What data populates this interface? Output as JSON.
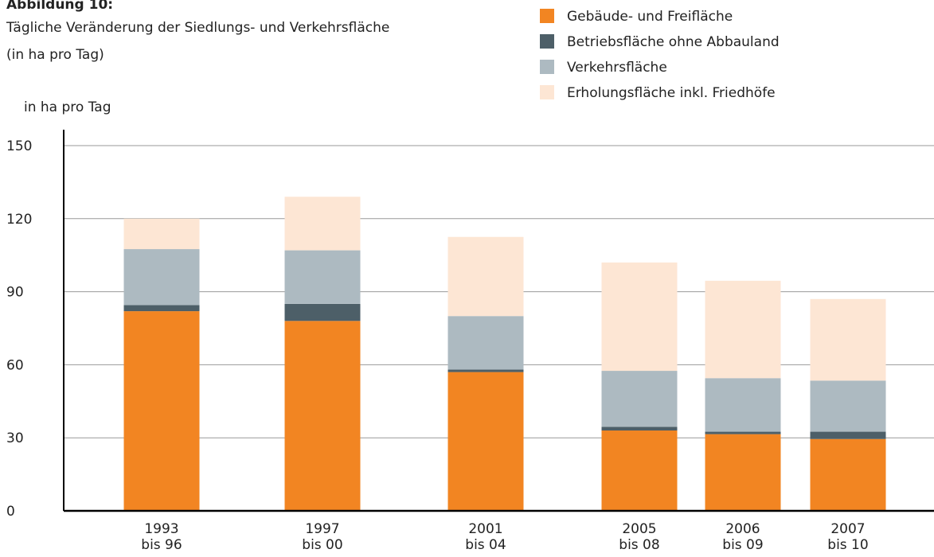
{
  "chart_data": {
    "type": "stacked_bar",
    "title": "Abbildung 10:",
    "subtitle": [
      "Tägliche Veränderung der Siedlungs- und Verkehrsfläche",
      "(in ha pro Tag)"
    ],
    "y_axis_label": "in ha pro Tag",
    "categories": [
      [
        "1993",
        "bis 96"
      ],
      [
        "1997",
        "bis 00"
      ],
      [
        "2001",
        "bis 04"
      ],
      [
        "2005",
        "bis 08"
      ],
      [
        "2006",
        "bis 09"
      ],
      [
        "2007",
        "bis 10"
      ]
    ],
    "series": [
      {
        "name": "Gebäude- und Freifläche",
        "color": "#f28522",
        "values": [
          82,
          78,
          57,
          33,
          31.5,
          29.5
        ]
      },
      {
        "name": "Betriebsfläche ohne Abbauland",
        "color": "#4d5f68",
        "values": [
          2.5,
          7,
          1,
          1.5,
          1,
          3
        ]
      },
      {
        "name": "Verkehrsfläche",
        "color": "#adbac1",
        "values": [
          23,
          22,
          22,
          23,
          22,
          21
        ]
      },
      {
        "name": "Erholungsfläche inkl. Friedhöfe",
        "color": "#fde6d4",
        "values": [
          12.5,
          22,
          32.5,
          44.5,
          40,
          33.5
        ]
      }
    ],
    "ylim": [
      0,
      150
    ],
    "yticks": [
      0,
      30,
      60,
      90,
      120,
      150
    ],
    "grid": true
  }
}
